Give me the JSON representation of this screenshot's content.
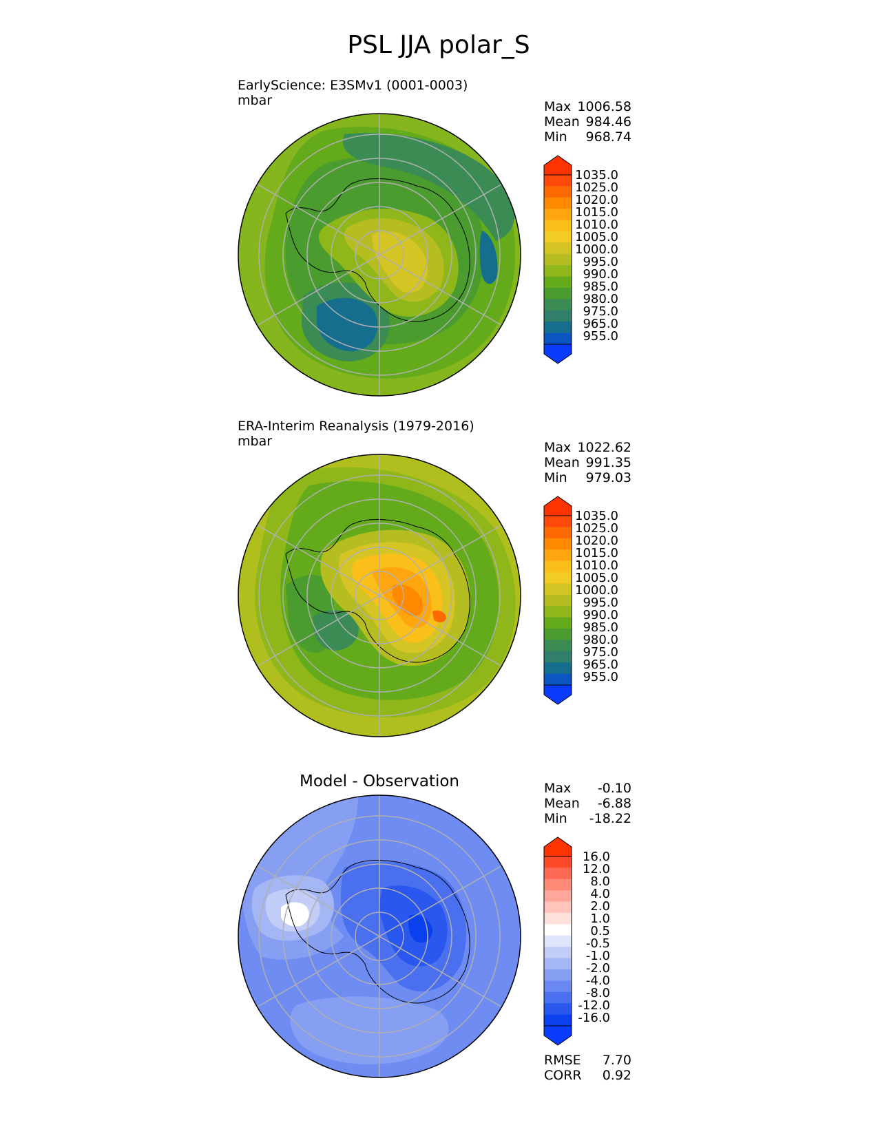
{
  "figure": {
    "title": "PSL JJA polar_S"
  },
  "chart_data": [
    {
      "type": "heatmap",
      "projection": "south-polar-stereographic",
      "title": "",
      "subtitle": "EarlyScience: E3SMv1 (0001-0003)",
      "units": "mbar",
      "stats": [
        {
          "label": "Max",
          "value": "1006.58"
        },
        {
          "label": "Mean",
          "value": "984.46"
        },
        {
          "label": "Min",
          "value": "968.74"
        }
      ],
      "colorbar": {
        "extend": "both",
        "tick_labels": [
          "1035.0",
          "1025.0",
          "1020.0",
          "1015.0",
          "1010.0",
          "1005.0",
          "1000.0",
          "995.0",
          "990.0",
          "985.0",
          "980.0",
          "975.0",
          "965.0",
          "955.0"
        ],
        "top_color": "#ff3300",
        "bottom_color": "#0a3cff",
        "colors": [
          "#ff4a0a",
          "#ff6a00",
          "#ff8a00",
          "#ffa510",
          "#fbbf1a",
          "#f2cc24",
          "#d4c424",
          "#b5bd20",
          "#8fb71a",
          "#63ab1a",
          "#4a9c2e",
          "#3b8b55",
          "#2f7f6a",
          "#166e8e",
          "#0c56c4"
        ]
      },
      "regions": {
        "background": "#86b61e",
        "zones": [
          {
            "name": "outer-ring-west",
            "value": 995
          },
          {
            "name": "inner-ring",
            "value": 985
          },
          {
            "name": "southern-trough",
            "value": 975
          },
          {
            "name": "eastern-trough",
            "value": 970
          },
          {
            "name": "southern-low",
            "value": 968
          },
          {
            "name": "antarctica-plateau",
            "value": 1000
          },
          {
            "name": "antarctica-high",
            "value": 1005
          }
        ]
      }
    },
    {
      "type": "heatmap",
      "projection": "south-polar-stereographic",
      "title": "",
      "subtitle": "ERA-Interim Reanalysis (1979-2016)",
      "units": "mbar",
      "stats": [
        {
          "label": "Max",
          "value": "1022.62"
        },
        {
          "label": "Mean",
          "value": "991.35"
        },
        {
          "label": "Min",
          "value": "979.03"
        }
      ],
      "colorbar": {
        "extend": "both",
        "tick_labels": [
          "1035.0",
          "1025.0",
          "1020.0",
          "1015.0",
          "1010.0",
          "1005.0",
          "1000.0",
          "995.0",
          "990.0",
          "985.0",
          "980.0",
          "975.0",
          "965.0",
          "955.0"
        ],
        "top_color": "#ff3300",
        "bottom_color": "#0a3cff",
        "colors": [
          "#ff4a0a",
          "#ff6a00",
          "#ff8a00",
          "#ffa510",
          "#fbbf1a",
          "#f2cc24",
          "#d4c424",
          "#b5bd20",
          "#8fb71a",
          "#63ab1a",
          "#4a9c2e",
          "#3b8b55",
          "#2f7f6a",
          "#166e8e",
          "#0c56c4"
        ]
      },
      "regions": {
        "background": "#b0bf1e",
        "zones": [
          {
            "name": "mid-ring",
            "value": 990
          },
          {
            "name": "inner-ring",
            "value": 985
          },
          {
            "name": "pacific-sector",
            "value": 980
          },
          {
            "name": "antarctica-plateau",
            "value": 1000
          },
          {
            "name": "antarctica-high",
            "value": 1010
          },
          {
            "name": "antarctica-core",
            "value": 1020
          }
        ]
      }
    },
    {
      "type": "heatmap",
      "projection": "south-polar-stereographic",
      "title": "Model - Observation",
      "subtitle": "",
      "units": "",
      "stats": [
        {
          "label": "Max",
          "value": "-0.10"
        },
        {
          "label": "Mean",
          "value": "-6.88"
        },
        {
          "label": "Min",
          "value": "-18.22"
        }
      ],
      "extra_stats": [
        {
          "label": "RMSE",
          "value": "7.70"
        },
        {
          "label": "CORR",
          "value": "0.92"
        }
      ],
      "colorbar": {
        "extend": "both",
        "tick_labels": [
          "16.0",
          "12.0",
          "8.0",
          "4.0",
          "2.0",
          "1.0",
          "0.5",
          "-0.5",
          "-1.0",
          "-2.0",
          "-4.0",
          "-8.0",
          "-12.0",
          "-16.0"
        ],
        "top_color": "#ff3300",
        "bottom_color": "#0a3cff",
        "colors": [
          "#ff4a2a",
          "#ff6a55",
          "#ff8a78",
          "#ffa69a",
          "#ffc4bb",
          "#ffe1dc",
          "#ffffff",
          "#dfe5fb",
          "#c2cdf8",
          "#a5b6f5",
          "#879ff3",
          "#6a88f1",
          "#4a70f0",
          "#2a58ef",
          "#0a40ee"
        ]
      },
      "regions": {
        "background": "#6e8cf2",
        "zones": [
          {
            "name": "pacific-sector",
            "value": -4
          },
          {
            "name": "peninsula-white",
            "value": -0.5
          },
          {
            "name": "peninsula-light",
            "value": -2
          },
          {
            "name": "antarctica-low",
            "value": -12
          },
          {
            "name": "antarctica-deep",
            "value": -16
          }
        ]
      }
    }
  ]
}
